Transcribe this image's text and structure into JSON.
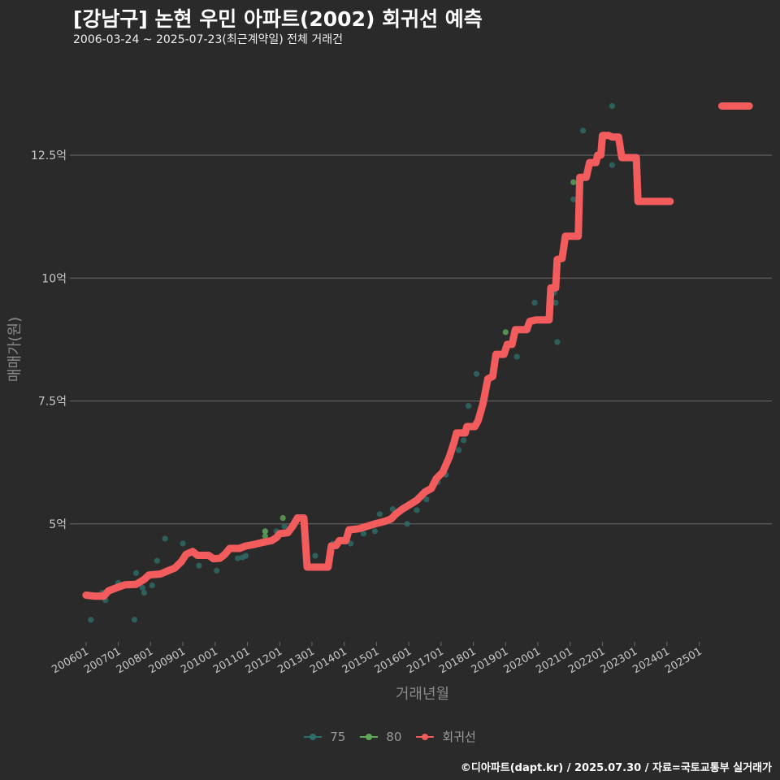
{
  "colors": {
    "background": "#2b2a2b",
    "grid": "#6a6a6a",
    "axis_text": "#c8c8c8",
    "axis_title": "#8a8a8a",
    "series_75": "#2e6e6a",
    "series_80": "#5fa85a",
    "regression": "#f35c5c"
  },
  "chart_data": {
    "type": "line",
    "title": "[강남구] 논현 우민 아파트(2002) 회귀선 예측",
    "subtitle": "2006-03-24 ~ 2025-07-23(최근계약일) 전체 거래건",
    "xlabel": "거래년월",
    "ylabel": "매매가(원)",
    "x_tick_labels": [
      "200601",
      "200701",
      "200801",
      "200901",
      "201001",
      "201101",
      "201201",
      "201301",
      "201401",
      "201501",
      "201601",
      "201701",
      "201801",
      "201901",
      "202001",
      "202101",
      "202201",
      "202301",
      "202401",
      "202501"
    ],
    "x_range": [
      2005.6,
      2027.25
    ],
    "y_ticks": [
      5,
      7.5,
      10,
      12.5
    ],
    "y_tick_labels": [
      "5억",
      "7.5억",
      "10억",
      "12.5억"
    ],
    "ylim": [
      2.6,
      14.5
    ],
    "legend": [
      "75",
      "80",
      "회귀선"
    ],
    "series": [
      {
        "name": "회귀선",
        "points": [
          [
            2006.0,
            3.55
          ],
          [
            2006.25,
            3.53
          ],
          [
            2006.55,
            3.53
          ],
          [
            2006.7,
            3.64
          ],
          [
            2006.95,
            3.7
          ],
          [
            2007.2,
            3.76
          ],
          [
            2007.55,
            3.77
          ],
          [
            2007.8,
            3.87
          ],
          [
            2007.95,
            3.96
          ],
          [
            2008.3,
            3.98
          ],
          [
            2008.55,
            4.05
          ],
          [
            2008.75,
            4.1
          ],
          [
            2008.95,
            4.23
          ],
          [
            2009.1,
            4.38
          ],
          [
            2009.3,
            4.44
          ],
          [
            2009.45,
            4.36
          ],
          [
            2009.8,
            4.36
          ],
          [
            2009.95,
            4.29
          ],
          [
            2010.15,
            4.3
          ],
          [
            2010.3,
            4.38
          ],
          [
            2010.45,
            4.5
          ],
          [
            2010.75,
            4.5
          ],
          [
            2010.95,
            4.55
          ],
          [
            2011.2,
            4.58
          ],
          [
            2011.45,
            4.62
          ],
          [
            2011.75,
            4.66
          ],
          [
            2011.9,
            4.72
          ],
          [
            2012.0,
            4.8
          ],
          [
            2012.25,
            4.82
          ],
          [
            2012.4,
            4.95
          ],
          [
            2012.55,
            5.12
          ],
          [
            2012.75,
            5.12
          ],
          [
            2012.85,
            4.12
          ],
          [
            2013.25,
            4.12
          ],
          [
            2013.5,
            4.12
          ],
          [
            2013.6,
            4.55
          ],
          [
            2013.75,
            4.56
          ],
          [
            2013.85,
            4.66
          ],
          [
            2014.05,
            4.66
          ],
          [
            2014.15,
            4.88
          ],
          [
            2014.45,
            4.9
          ],
          [
            2014.7,
            4.95
          ],
          [
            2014.95,
            5.0
          ],
          [
            2015.25,
            5.05
          ],
          [
            2015.45,
            5.1
          ],
          [
            2015.6,
            5.2
          ],
          [
            2015.8,
            5.3
          ],
          [
            2016.0,
            5.38
          ],
          [
            2016.25,
            5.48
          ],
          [
            2016.5,
            5.65
          ],
          [
            2016.7,
            5.72
          ],
          [
            2016.85,
            5.92
          ],
          [
            2017.05,
            6.05
          ],
          [
            2017.25,
            6.35
          ],
          [
            2017.4,
            6.65
          ],
          [
            2017.48,
            6.85
          ],
          [
            2017.75,
            6.85
          ],
          [
            2017.8,
            6.98
          ],
          [
            2018.05,
            6.98
          ],
          [
            2018.15,
            7.1
          ],
          [
            2018.3,
            7.45
          ],
          [
            2018.45,
            7.95
          ],
          [
            2018.6,
            8.0
          ],
          [
            2018.7,
            8.45
          ],
          [
            2018.95,
            8.45
          ],
          [
            2019.05,
            8.65
          ],
          [
            2019.2,
            8.65
          ],
          [
            2019.3,
            8.95
          ],
          [
            2019.65,
            8.95
          ],
          [
            2019.75,
            9.12
          ],
          [
            2019.95,
            9.15
          ],
          [
            2020.35,
            9.15
          ],
          [
            2020.4,
            9.8
          ],
          [
            2020.55,
            9.8
          ],
          [
            2020.6,
            10.38
          ],
          [
            2020.75,
            10.4
          ],
          [
            2020.85,
            10.85
          ],
          [
            2021.25,
            10.85
          ],
          [
            2021.3,
            12.05
          ],
          [
            2021.5,
            12.05
          ],
          [
            2021.6,
            12.35
          ],
          [
            2021.8,
            12.35
          ],
          [
            2021.85,
            12.5
          ],
          [
            2021.95,
            12.5
          ],
          [
            2022.0,
            12.9
          ],
          [
            2022.2,
            12.9
          ],
          [
            2022.3,
            12.87
          ],
          [
            2022.5,
            12.87
          ],
          [
            2022.6,
            12.45
          ],
          [
            2022.95,
            12.45
          ],
          [
            2023.05,
            12.45
          ],
          [
            2023.1,
            11.56
          ],
          [
            2023.55,
            11.56
          ],
          [
            2024.1,
            11.56
          ]
        ],
        "extra_segment": [
          [
            2025.7,
            13.5
          ],
          [
            2026.55,
            13.5
          ]
        ]
      },
      {
        "name": "75",
        "points": [
          [
            2006.15,
            3.05
          ],
          [
            2006.5,
            3.6
          ],
          [
            2006.6,
            3.45
          ],
          [
            2007.0,
            3.8
          ],
          [
            2007.4,
            3.78
          ],
          [
            2007.5,
            3.05
          ],
          [
            2007.55,
            4.0
          ],
          [
            2007.75,
            3.7
          ],
          [
            2007.8,
            3.6
          ],
          [
            2008.05,
            3.75
          ],
          [
            2008.2,
            4.25
          ],
          [
            2008.45,
            4.7
          ],
          [
            2009.0,
            4.6
          ],
          [
            2009.5,
            4.15
          ],
          [
            2010.05,
            4.05
          ],
          [
            2010.7,
            4.3
          ],
          [
            2010.85,
            4.32
          ],
          [
            2010.95,
            4.35
          ],
          [
            2011.4,
            4.6
          ],
          [
            2011.55,
            4.85
          ],
          [
            2011.9,
            4.85
          ],
          [
            2012.15,
            4.95
          ],
          [
            2013.1,
            4.35
          ],
          [
            2013.65,
            4.6
          ],
          [
            2014.2,
            4.6
          ],
          [
            2014.6,
            4.8
          ],
          [
            2014.95,
            4.85
          ],
          [
            2015.1,
            5.2
          ],
          [
            2015.4,
            5.05
          ],
          [
            2015.5,
            5.3
          ],
          [
            2015.95,
            5.0
          ],
          [
            2016.2,
            5.45
          ],
          [
            2016.25,
            5.28
          ],
          [
            2016.55,
            5.5
          ],
          [
            2016.9,
            5.85
          ],
          [
            2017.15,
            6.0
          ],
          [
            2017.55,
            6.5
          ],
          [
            2017.7,
            6.7
          ],
          [
            2017.85,
            7.4
          ],
          [
            2018.1,
            8.05
          ],
          [
            2019.35,
            8.4
          ],
          [
            2019.7,
            8.95
          ],
          [
            2019.9,
            9.5
          ],
          [
            2020.5,
            9.7
          ],
          [
            2020.6,
            8.7
          ],
          [
            2020.55,
            9.5
          ],
          [
            2021.1,
            11.6
          ],
          [
            2021.4,
            13.0
          ],
          [
            2022.3,
            12.3
          ],
          [
            2022.3,
            13.5
          ]
        ]
      },
      {
        "name": "80",
        "points": [
          [
            2011.55,
            4.75
          ],
          [
            2011.55,
            4.85
          ],
          [
            2012.1,
            5.12
          ],
          [
            2019.0,
            8.9
          ],
          [
            2021.1,
            11.95
          ]
        ]
      }
    ]
  },
  "legend_labels": {
    "s75": "75",
    "s80": "80",
    "reg": "회귀선"
  },
  "footer": "©디아파트(dapt.kr) / 2025.07.30 / 자료=국토교통부 실거래가"
}
